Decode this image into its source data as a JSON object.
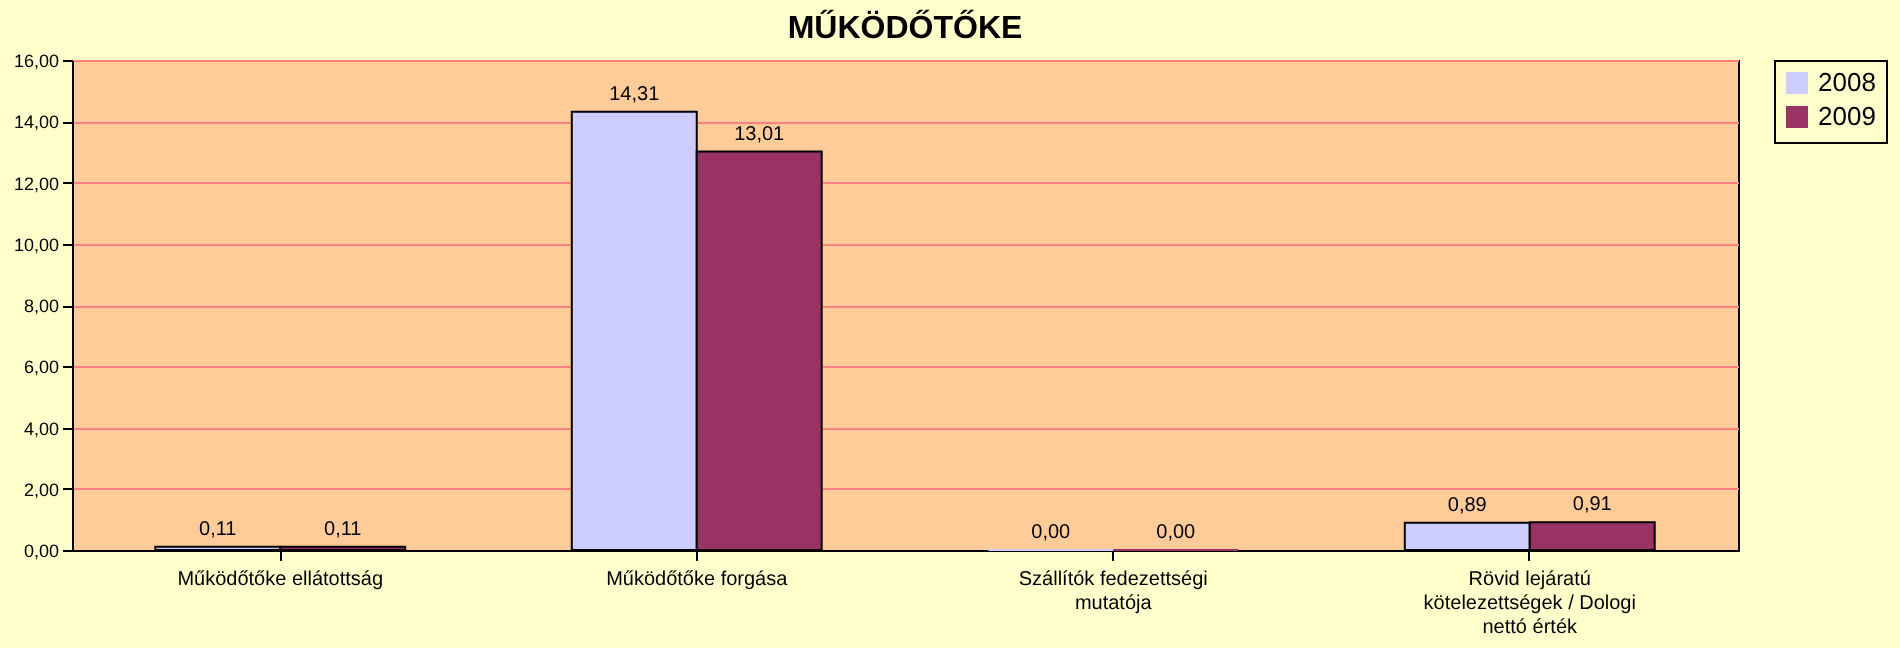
{
  "chart_data": {
    "type": "bar",
    "title": "MŰKÖDŐTŐKE",
    "categories": [
      "Működőtőke ellátottság",
      "Működőtőke forgása",
      "Szállítók fedezettségi mutatója",
      "Rövid lejáratú kötelezettségek / Dologi nettó érték"
    ],
    "series": [
      {
        "name": "2008",
        "color": "#ccccff",
        "values": [
          0.11,
          14.31,
          0.0,
          0.89
        ],
        "value_labels": [
          "0,11",
          "14,31",
          "0,00",
          "0,89"
        ]
      },
      {
        "name": "2009",
        "color": "#993366",
        "values": [
          0.11,
          13.01,
          0.0,
          0.91
        ],
        "value_labels": [
          "0,11",
          "13,01",
          "0,00",
          "0,91"
        ]
      }
    ],
    "ylim": [
      0,
      16
    ],
    "yticks": [
      {
        "value": 0,
        "label": "0,00"
      },
      {
        "value": 2,
        "label": "2,00"
      },
      {
        "value": 4,
        "label": "4,00"
      },
      {
        "value": 6,
        "label": "6,00"
      },
      {
        "value": 8,
        "label": "8,00"
      },
      {
        "value": 10,
        "label": "10,00"
      },
      {
        "value": 12,
        "label": "12,00"
      },
      {
        "value": 14,
        "label": "14,00"
      },
      {
        "value": 16,
        "label": "16,00"
      }
    ],
    "grid": "y",
    "legend": "right"
  }
}
